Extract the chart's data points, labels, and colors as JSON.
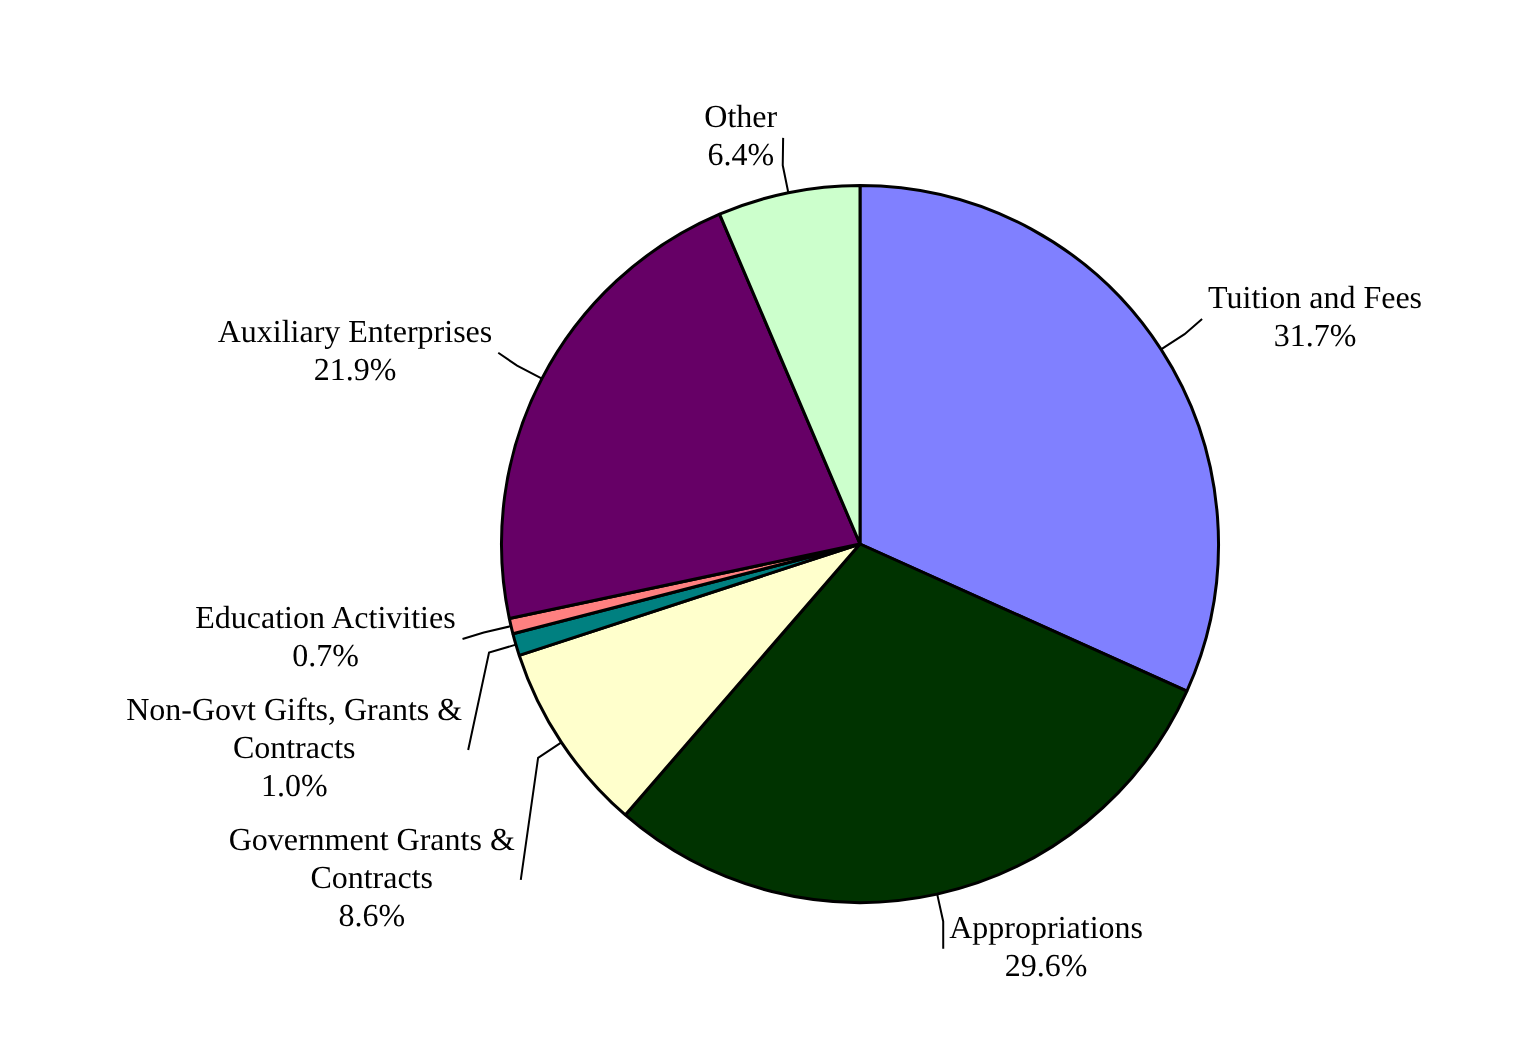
{
  "chart_data": {
    "type": "pie",
    "categories": [
      "Tuition and Fees",
      "Appropriations",
      "Government Grants & Contracts",
      "Non-Govt Gifts, Grants & Contracts",
      "Education Activities",
      "Auxiliary Enterprises",
      "Other"
    ],
    "values": [
      31.7,
      29.6,
      8.6,
      1.0,
      0.7,
      21.9,
      6.4
    ],
    "value_labels": [
      "31.7%",
      "29.6%",
      "8.6%",
      "1.0%",
      "0.7%",
      "21.9%",
      "6.4%"
    ],
    "colors": [
      "#8080ff",
      "#003300",
      "#ffffcc",
      "#008080",
      "#ff8080",
      "#660066",
      "#ccffcc"
    ],
    "legend": false
  }
}
